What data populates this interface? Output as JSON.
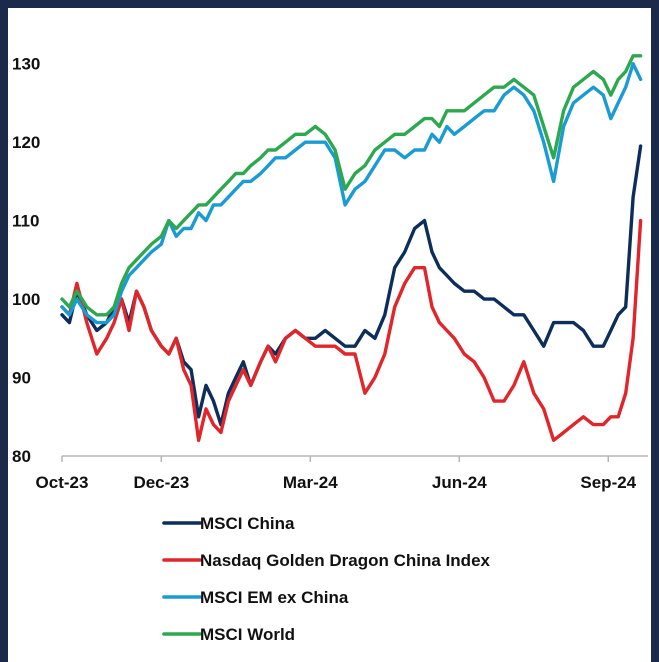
{
  "chart_data": {
    "type": "line",
    "title": "",
    "xlabel": "",
    "ylabel": "",
    "ylim": [
      80,
      132
    ],
    "yticks": [
      80,
      90,
      100,
      110,
      120,
      130
    ],
    "xticks": [
      {
        "label": "Oct-23",
        "x": 0
      },
      {
        "label": "Dec-23",
        "x": 2
      },
      {
        "label": "Mar-24",
        "x": 5
      },
      {
        "label": "Jun-24",
        "x": 8
      },
      {
        "label": "Sep-24",
        "x": 11
      }
    ],
    "xlim": [
      0,
      11.8
    ],
    "grid": false,
    "legend_position": "bottom",
    "series": [
      {
        "name": "MSCI China",
        "color": "#0d2d5a",
        "x": [
          0,
          0.15,
          0.3,
          0.5,
          0.7,
          0.9,
          1.05,
          1.2,
          1.35,
          1.5,
          1.65,
          1.8,
          2.0,
          2.15,
          2.3,
          2.45,
          2.6,
          2.75,
          2.9,
          3.05,
          3.2,
          3.35,
          3.5,
          3.65,
          3.8,
          4.0,
          4.15,
          4.3,
          4.5,
          4.7,
          4.9,
          5.1,
          5.3,
          5.5,
          5.7,
          5.9,
          6.1,
          6.3,
          6.5,
          6.7,
          6.9,
          7.1,
          7.3,
          7.45,
          7.6,
          7.75,
          7.9,
          8.1,
          8.3,
          8.5,
          8.7,
          8.9,
          9.1,
          9.3,
          9.5,
          9.7,
          9.9,
          10.1,
          10.3,
          10.5,
          10.7,
          10.9,
          11.05,
          11.2,
          11.35,
          11.5,
          11.65
        ],
        "values": [
          98,
          97,
          101,
          98,
          96,
          97,
          99,
          100,
          97,
          101,
          99,
          96,
          94,
          93,
          95,
          92,
          91,
          85,
          89,
          87,
          84,
          88,
          90,
          92,
          89,
          92,
          94,
          93,
          95,
          96,
          95,
          95,
          96,
          95,
          94,
          94,
          96,
          95,
          98,
          104,
          106,
          109,
          110,
          106,
          104,
          103,
          102,
          101,
          101,
          100,
          100,
          99,
          98,
          98,
          96,
          94,
          97,
          97,
          97,
          96,
          94,
          94,
          96,
          98,
          99,
          113,
          119.5
        ]
      },
      {
        "name": "Nasdaq Golden Dragon China Index",
        "color": "#e0262b",
        "x": [
          0,
          0.15,
          0.3,
          0.5,
          0.7,
          0.9,
          1.05,
          1.2,
          1.35,
          1.5,
          1.65,
          1.8,
          2.0,
          2.15,
          2.3,
          2.45,
          2.6,
          2.75,
          2.9,
          3.05,
          3.2,
          3.35,
          3.5,
          3.65,
          3.8,
          4.0,
          4.15,
          4.3,
          4.5,
          4.7,
          4.9,
          5.1,
          5.3,
          5.5,
          5.7,
          5.9,
          6.1,
          6.3,
          6.5,
          6.7,
          6.9,
          7.1,
          7.3,
          7.45,
          7.6,
          7.75,
          7.9,
          8.1,
          8.3,
          8.5,
          8.7,
          8.9,
          9.1,
          9.3,
          9.5,
          9.7,
          9.9,
          10.1,
          10.3,
          10.5,
          10.7,
          10.9,
          11.05,
          11.2,
          11.35,
          11.5,
          11.65
        ],
        "values": [
          99,
          98,
          102,
          97,
          93,
          95,
          97,
          100,
          96,
          101,
          99,
          96,
          94,
          93,
          95,
          91,
          89,
          82,
          86,
          84,
          83,
          87,
          89,
          91,
          89,
          92,
          94,
          92,
          95,
          96,
          95,
          94,
          94,
          94,
          93,
          93,
          88,
          90,
          93,
          99,
          102,
          104,
          104,
          99,
          97,
          96,
          95,
          93,
          92,
          90,
          87,
          87,
          89,
          92,
          88,
          86,
          82,
          83,
          84,
          85,
          84,
          84,
          85,
          85,
          88,
          95,
          110
        ]
      },
      {
        "name": "MSCI EM ex China",
        "color": "#1a9bd4",
        "x": [
          0,
          0.15,
          0.3,
          0.5,
          0.7,
          0.9,
          1.05,
          1.2,
          1.35,
          1.5,
          1.65,
          1.8,
          2.0,
          2.15,
          2.3,
          2.45,
          2.6,
          2.75,
          2.9,
          3.05,
          3.2,
          3.35,
          3.5,
          3.65,
          3.8,
          4.0,
          4.15,
          4.3,
          4.5,
          4.7,
          4.9,
          5.1,
          5.3,
          5.5,
          5.7,
          5.9,
          6.1,
          6.3,
          6.5,
          6.7,
          6.9,
          7.1,
          7.3,
          7.45,
          7.6,
          7.75,
          7.9,
          8.1,
          8.3,
          8.5,
          8.7,
          8.9,
          9.1,
          9.3,
          9.5,
          9.7,
          9.9,
          10.1,
          10.3,
          10.5,
          10.7,
          10.9,
          11.05,
          11.2,
          11.35,
          11.5,
          11.65
        ],
        "values": [
          99,
          98,
          100,
          98,
          97,
          97,
          98,
          101,
          103,
          104,
          105,
          106,
          107,
          110,
          108,
          109,
          109,
          111,
          110,
          112,
          112,
          113,
          114,
          115,
          115,
          116,
          117,
          118,
          118,
          119,
          120,
          120,
          120,
          118,
          112,
          114,
          115,
          117,
          119,
          119,
          118,
          119,
          119,
          121,
          120,
          122,
          121,
          122,
          123,
          124,
          124,
          126,
          127,
          126,
          124,
          120,
          115,
          122,
          125,
          126,
          127,
          126,
          123,
          125,
          127,
          130,
          128
        ]
      },
      {
        "name": "MSCI World",
        "color": "#2ea84f",
        "x": [
          0,
          0.15,
          0.3,
          0.5,
          0.7,
          0.9,
          1.05,
          1.2,
          1.35,
          1.5,
          1.65,
          1.8,
          2.0,
          2.15,
          2.3,
          2.45,
          2.6,
          2.75,
          2.9,
          3.05,
          3.2,
          3.35,
          3.5,
          3.65,
          3.8,
          4.0,
          4.15,
          4.3,
          4.5,
          4.7,
          4.9,
          5.1,
          5.3,
          5.5,
          5.7,
          5.9,
          6.1,
          6.3,
          6.5,
          6.7,
          6.9,
          7.1,
          7.3,
          7.45,
          7.6,
          7.75,
          7.9,
          8.1,
          8.3,
          8.5,
          8.7,
          8.9,
          9.1,
          9.3,
          9.5,
          9.7,
          9.9,
          10.1,
          10.3,
          10.5,
          10.7,
          10.9,
          11.05,
          11.2,
          11.35,
          11.5,
          11.65
        ],
        "values": [
          100,
          99,
          101,
          99,
          98,
          98,
          99,
          102,
          104,
          105,
          106,
          107,
          108,
          110,
          109,
          110,
          111,
          112,
          112,
          113,
          114,
          115,
          116,
          116,
          117,
          118,
          119,
          119,
          120,
          121,
          121,
          122,
          121,
          119,
          114,
          116,
          117,
          119,
          120,
          121,
          121,
          122,
          123,
          123,
          122,
          124,
          124,
          124,
          125,
          126,
          127,
          127,
          128,
          127,
          126,
          122,
          118,
          124,
          127,
          128,
          129,
          128,
          126,
          128,
          129,
          131,
          131
        ]
      }
    ]
  }
}
